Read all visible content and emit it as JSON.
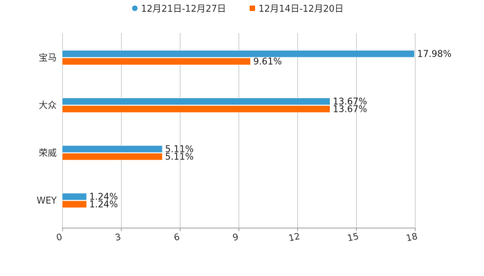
{
  "colors": {
    "series_blue": "#3a9bd0",
    "series_orange": "#ff6a00",
    "grid": "#cccccc",
    "axis": "#999999"
  },
  "chart_data": {
    "type": "bar",
    "orientation": "horizontal",
    "title": "",
    "xlabel": "",
    "ylabel": "",
    "categories": [
      "宝马",
      "大众",
      "荣威",
      "WEY"
    ],
    "series": [
      {
        "name": "12月21日-12月27日",
        "values": [
          17.98,
          13.67,
          5.11,
          1.24
        ],
        "labels": [
          "17.98%",
          "13.67%",
          "5.11%",
          "1.24%"
        ],
        "color": "#3a9bd0"
      },
      {
        "name": "12月14日-12月20日",
        "values": [
          9.61,
          13.67,
          5.11,
          1.24
        ],
        "labels": [
          "9.61%",
          "13.67%",
          "5.11%",
          "1.24%"
        ],
        "color": "#ff6a00"
      }
    ],
    "xlim": [
      0,
      18
    ],
    "xticks": [
      0,
      3,
      6,
      9,
      12,
      15,
      18
    ],
    "xtick_labels": [
      "0",
      "3",
      "6",
      "9",
      "12",
      "15",
      "18"
    ],
    "grid": true,
    "legend_position": "top-center"
  }
}
